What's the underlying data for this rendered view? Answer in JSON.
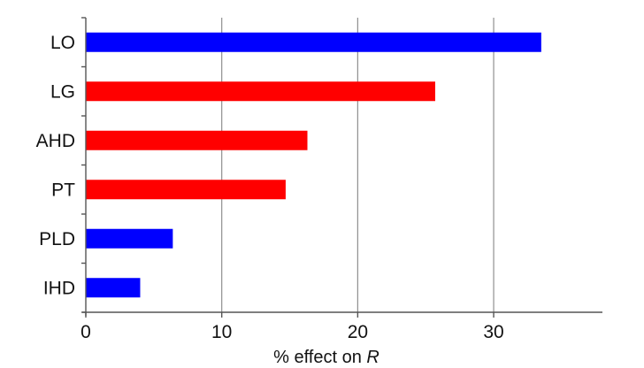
{
  "chart_data": {
    "type": "bar",
    "orientation": "horizontal",
    "categories": [
      "LO",
      "LG",
      "AHD",
      "PT",
      "PLD",
      "IHD"
    ],
    "values": [
      33.5,
      25.7,
      16.3,
      14.7,
      6.4,
      4.0
    ],
    "bar_colors": [
      "#0000ff",
      "#ff0000",
      "#ff0000",
      "#ff0000",
      "#0000ff",
      "#0000ff"
    ],
    "xlabel_text": "% effect on ",
    "xlabel_var": "R",
    "xlim": [
      0,
      38
    ],
    "xticks": [
      0,
      10,
      20,
      30
    ],
    "xtick_labels": [
      "0",
      "10",
      "20",
      "30"
    ],
    "grid": "vertical"
  }
}
